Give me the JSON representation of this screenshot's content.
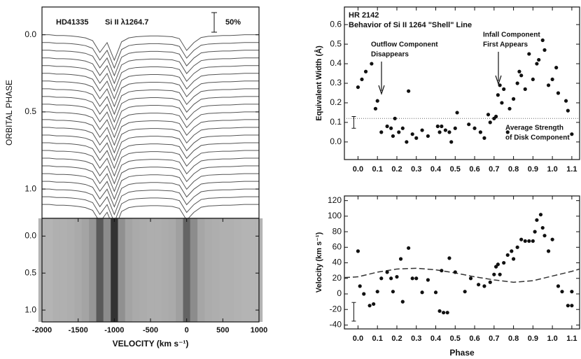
{
  "chart_data": [
    {
      "type": "spectra",
      "annotations": [
        "HD41335",
        "Si II λ1264.7"
      ],
      "scale_bar": {
        "value": 50,
        "label": "50%"
      },
      "ylabel": "ORBITAL PHASE",
      "ylim": [
        -0.18,
        1.19
      ],
      "yticks": [
        {
          "value": 0,
          "label": "0.0"
        },
        0.5,
        {
          "value": 1,
          "label": "1.0"
        }
      ],
      "xlim": [
        -2000,
        1000
      ],
      "x": [
        -2000,
        -1900,
        -1800,
        -1700,
        -1600,
        -1500,
        -1400,
        -1300,
        -1200,
        -1100,
        -1000,
        -900,
        -800,
        -700,
        -600,
        -500,
        -400,
        -300,
        -200,
        -100,
        0,
        100,
        200,
        300,
        400,
        500,
        600,
        700,
        800,
        900,
        1000
      ],
      "profile": [
        1,
        1,
        0.98,
        0.98,
        0.97,
        0.95,
        0.92,
        0.85,
        0.55,
        0.8,
        0.35,
        0.82,
        0.92,
        0.95,
        0.96,
        0.97,
        0.97,
        0.96,
        0.95,
        0.9,
        0.6,
        0.8,
        0.93,
        0.96,
        0.97,
        0.98,
        0.98,
        0.99,
        1,
        1,
        1
      ],
      "phases": [
        0,
        0.05,
        0.1,
        0.15,
        0.2,
        0.25,
        0.3,
        0.35,
        0.4,
        0.45,
        0.5,
        0.55,
        0.6,
        0.65,
        0.7,
        0.75,
        0.8,
        0.85,
        0.9,
        0.95,
        1,
        1.05,
        1.1
      ],
      "color": "#555555"
    },
    {
      "type": "dynamic",
      "ylim": [
        -0.24,
        1.16
      ],
      "yticks": [
        {
          "value": 0,
          "label": "0.0"
        },
        0.5,
        {
          "value": 1,
          "label": "1.0"
        }
      ],
      "xlim": [
        -2000,
        1000
      ],
      "xticks": [
        -2000,
        -1500,
        -1000,
        -500,
        0,
        500,
        1000
      ],
      "xlabel": "VELOCITY (km s⁻¹)"
    },
    {
      "type": "scatter",
      "title": "HR 2142",
      "subtitle": "Behavior of Si II 1264 \"Shell\" Line",
      "ylabel": "Equivalent Width (Å)",
      "annotations": [
        "Outflow Component",
        "Disappears",
        "Infall Component",
        "First Appears",
        "Average Strength",
        "of Disk Component"
      ],
      "reference_line": 0.12,
      "error_bar": {
        "x": 0,
        "y": 0.1,
        "err": 0.03
      },
      "xlim": [
        -0.07,
        1.14
      ],
      "ylim": [
        -0.09,
        0.69
      ],
      "xticks": [
        {
          "value": 0,
          "label": "0.0"
        },
        0.1,
        0.2,
        0.3,
        0.4,
        0.5,
        0.6,
        0.7,
        0.8,
        0.9,
        {
          "value": 1,
          "label": "1.0"
        },
        1.1
      ],
      "yticks": [
        {
          "value": 0,
          "label": "0.0"
        },
        0.1,
        0.2,
        0.3,
        0.4,
        0.5,
        0.6
      ],
      "x": [
        0,
        0.02,
        0.04,
        0.07,
        0.1,
        0.09,
        0.12,
        0.15,
        0.17,
        0.18,
        0.19,
        0.21,
        0.23,
        0.25,
        0.26,
        0.28,
        0.3,
        0.33,
        0.36,
        0.41,
        0.42,
        0.43,
        0.45,
        0.47,
        0.48,
        0.5,
        0.51,
        0.57,
        0.6,
        0.63,
        0.65,
        0.67,
        0.68,
        0.7,
        0.71,
        0.72,
        0.73,
        0.74,
        0.75,
        0.77,
        0.78,
        0.8,
        0.82,
        0.83,
        0.84,
        0.86,
        0.88,
        0.9,
        0.92,
        0.93,
        0.95,
        0.96,
        0.98,
        1,
        1.02,
        1.03,
        1.07,
        1.08,
        1.1
      ],
      "y": [
        0.28,
        0.32,
        0.36,
        0.4,
        0.21,
        0.17,
        0.05,
        0.08,
        0.07,
        0.03,
        0.12,
        0.05,
        0.07,
        0,
        0.26,
        0.04,
        0.02,
        0.06,
        0.03,
        0.08,
        0.05,
        0.08,
        0.06,
        0.05,
        0,
        0.07,
        0.15,
        0.09,
        0.07,
        0.05,
        0.02,
        0.14,
        0.1,
        0.12,
        0.13,
        0.24,
        0.29,
        0.2,
        0.27,
        0.05,
        0.17,
        0.22,
        0.3,
        0.36,
        0.34,
        0.27,
        0.45,
        0.32,
        0.4,
        0.42,
        0.52,
        0.47,
        0.29,
        0.32,
        0.38,
        0.25,
        0.21,
        0.16,
        0.04
      ]
    },
    {
      "type": "scatter",
      "ylabel": "Velocity (km s⁻¹)",
      "xlabel": "Phase",
      "error_bar": {
        "x": 0,
        "y": -23,
        "err": 12
      },
      "xlim": [
        -0.07,
        1.14
      ],
      "ylim": [
        -45,
        126
      ],
      "xticks": [
        {
          "value": 0,
          "label": "0.0"
        },
        0.1,
        0.2,
        0.3,
        0.4,
        0.5,
        0.6,
        0.7,
        0.8,
        0.9,
        {
          "value": 1,
          "label": "1.0"
        },
        1.1
      ],
      "yticks": [
        -40,
        -20,
        0,
        20,
        40,
        60,
        80,
        100,
        120
      ],
      "curve": {
        "x": [
          -0.07,
          0,
          0.1,
          0.2,
          0.3,
          0.4,
          0.5,
          0.6,
          0.7,
          0.8,
          0.9,
          1,
          1.1,
          1.14
        ],
        "y": [
          21,
          22,
          28,
          32,
          33,
          31,
          27,
          22,
          18,
          15,
          17,
          23,
          29,
          32
        ]
      },
      "x": [
        0,
        0.01,
        0.03,
        0.06,
        0.08,
        0.1,
        0.12,
        0.15,
        0.17,
        0.18,
        0.2,
        0.22,
        0.23,
        0.26,
        0.28,
        0.3,
        0.33,
        0.36,
        0.4,
        0.42,
        0.43,
        0.44,
        0.46,
        0.47,
        0.5,
        0.55,
        0.58,
        0.62,
        0.65,
        0.68,
        0.7,
        0.71,
        0.72,
        0.73,
        0.75,
        0.77,
        0.79,
        0.8,
        0.82,
        0.84,
        0.86,
        0.88,
        0.9,
        0.91,
        0.92,
        0.94,
        0.95,
        0.96,
        0.98,
        1,
        1.03,
        1.05,
        1.08,
        1.1,
        1.1
      ],
      "y": [
        55,
        10,
        0,
        -15,
        -13,
        3,
        20,
        28,
        20,
        3,
        22,
        45,
        -10,
        59,
        20,
        20,
        2,
        18,
        2,
        -22,
        30,
        -24,
        -24,
        46,
        28,
        3,
        20,
        12,
        10,
        15,
        25,
        35,
        38,
        25,
        40,
        50,
        55,
        45,
        60,
        70,
        68,
        68,
        68,
        80,
        95,
        102,
        85,
        75,
        55,
        70,
        10,
        3,
        -15,
        -15,
        3
      ]
    }
  ]
}
